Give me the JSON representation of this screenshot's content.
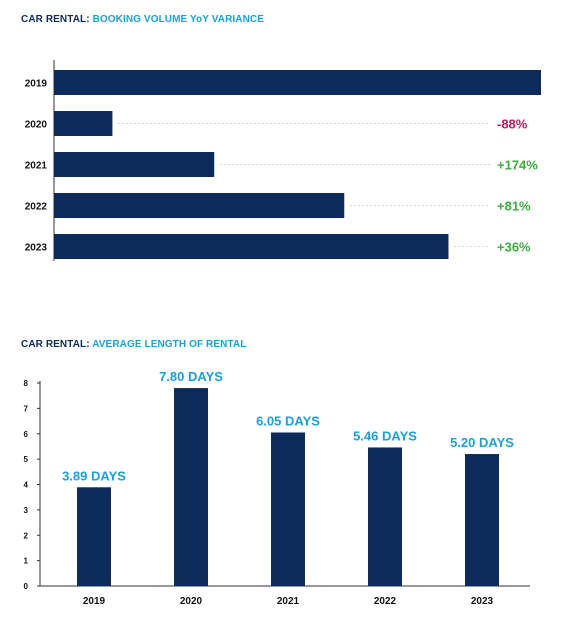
{
  "colors": {
    "bar": "#0c2a5c",
    "negative": "#c2185b",
    "positive": "#3cae3c",
    "value_label": "#1aa0dc",
    "dotted_line": "#cccccc"
  },
  "chart_data": [
    {
      "type": "bar",
      "orientation": "horizontal",
      "title_prefix": "CAR RENTAL:",
      "title_suffix": "BOOKING VOLUME YoY VARIANCE",
      "categories": [
        "2019",
        "2020",
        "2021",
        "2022",
        "2023"
      ],
      "values": [
        100,
        12,
        32.9,
        59.6,
        81
      ],
      "variance_labels": [
        "",
        "-88%",
        "+174%",
        "+81%",
        "+36%"
      ],
      "xlim": [
        0,
        100
      ],
      "grid": false,
      "legend": "none"
    },
    {
      "type": "bar",
      "orientation": "vertical",
      "title_prefix": "CAR RENTAL:",
      "title_suffix": "AVERAGE LENGTH OF RENTAL",
      "categories": [
        "2019",
        "2020",
        "2021",
        "2022",
        "2023"
      ],
      "values": [
        3.89,
        7.8,
        6.05,
        5.46,
        5.2
      ],
      "data_labels": [
        "3.89 DAYS",
        "7.80 DAYS",
        "6.05 DAYS",
        "5.46 DAYS",
        "5.20 DAYS"
      ],
      "yticks": [
        "0",
        "1",
        "2",
        "3",
        "4",
        "5",
        "6",
        "7",
        "8"
      ],
      "ylim": [
        0,
        8
      ],
      "grid": false,
      "legend": "none"
    }
  ]
}
